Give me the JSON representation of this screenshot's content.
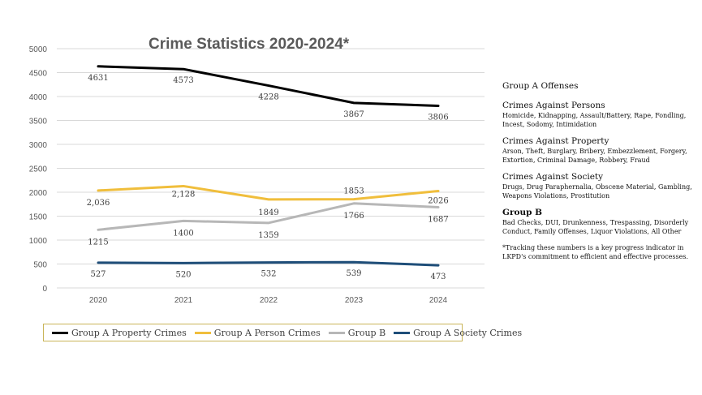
{
  "chart_data": {
    "type": "line",
    "title": "Crime Statistics 2020-2024*",
    "categories": [
      "2020",
      "2021",
      "2022",
      "2023",
      "2024"
    ],
    "y_ticks": [
      "0",
      "500",
      "1000",
      "1500",
      "2000",
      "2500",
      "3000",
      "3500",
      "4000",
      "4500",
      "5000"
    ],
    "ylim": [
      0,
      5000
    ],
    "grid": true,
    "legend_position": "bottom",
    "series": [
      {
        "name": "Group A Property Crimes",
        "color": "#000000",
        "values": [
          4631,
          4573,
          4228,
          3867,
          3806
        ],
        "labels": [
          "4631",
          "4573",
          "4228",
          "3867",
          "3806"
        ]
      },
      {
        "name": "Group A Person Crimes",
        "color": "#f0be3c",
        "values": [
          2036,
          2128,
          1849,
          1853,
          2026
        ],
        "labels": [
          "2,036",
          "2,128",
          "1849",
          "1853",
          "2026"
        ]
      },
      {
        "name": "Group B",
        "color": "#b7b7b7",
        "values": [
          1215,
          1400,
          1359,
          1766,
          1687
        ],
        "labels": [
          "1215",
          "1400",
          "1359",
          "1766",
          "1687"
        ]
      },
      {
        "name": "Group A Society Crimes",
        "color": "#1f4e79",
        "values": [
          527,
          520,
          532,
          539,
          473
        ],
        "labels": [
          "527",
          "520",
          "532",
          "539",
          "473"
        ]
      }
    ]
  },
  "side_panel": {
    "header": "Group A Offenses",
    "categories": [
      {
        "title": "Crimes Against Persons",
        "desc": "Homicide, Kidnapping, Assault/Battery, Rape, Fondling, Incest, Sodomy, Intimidation"
      },
      {
        "title": "Crimes Against Property",
        "desc": "Arson, Theft, Burglary, Bribery, Embezzlement, Forgery, Extortion, Criminal Damage, Robbery, Fraud"
      },
      {
        "title": "Crimes Against Society",
        "desc": "Drugs, Drug Paraphernalia, Obscene Material, Gambling, Weapons Violations, Prostitution"
      },
      {
        "title": "Group B",
        "desc": "Bad Checks, DUI, Drunkenness, Trespassing, Disorderly Conduct, Family Offenses, Liquor Violations, All Other"
      }
    ],
    "note": "*Tracking these numbers is a key progress indicator in LKPD's commitment to efficient and effective processes."
  }
}
